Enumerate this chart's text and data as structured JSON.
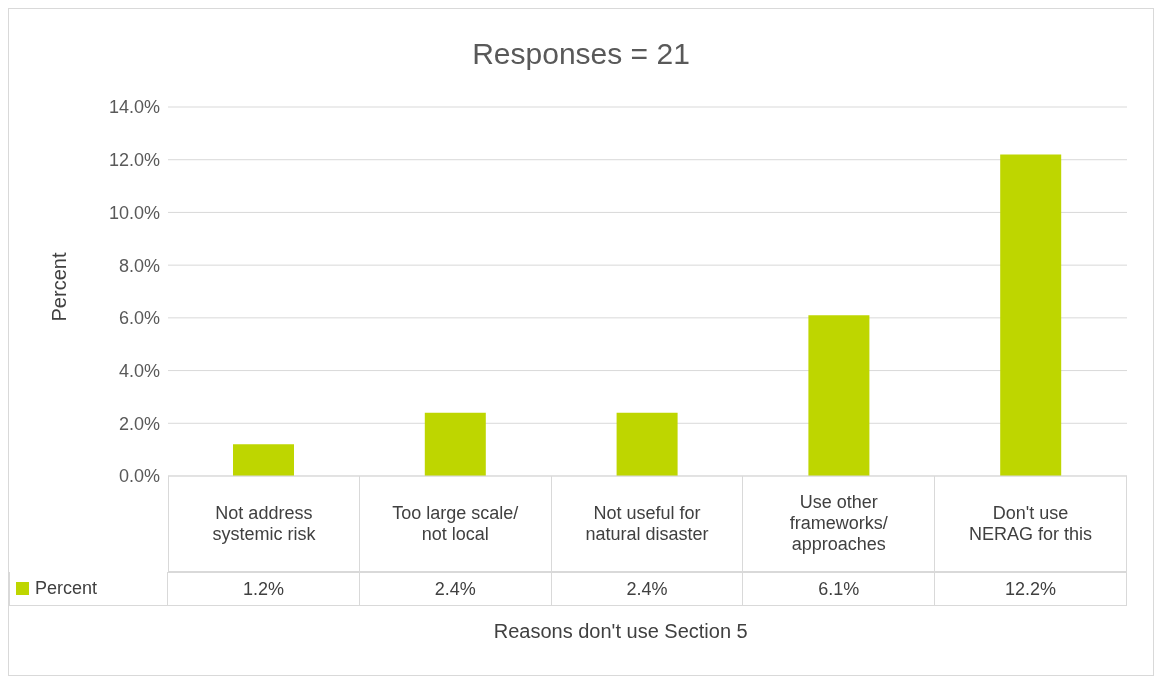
{
  "chart_data": {
    "type": "bar",
    "title": "Responses = 21",
    "xlabel": "Reasons don't use Section 5",
    "ylabel": "Percent",
    "categories": [
      "Not address systemic risk",
      "Too large scale/ not local",
      "Not useful for natural disaster",
      "Use other frameworks/ approaches",
      "Don't use NERAG for this"
    ],
    "series": [
      {
        "name": "Percent",
        "color": "#bed600",
        "values": [
          1.2,
          2.4,
          2.4,
          6.1,
          12.2
        ],
        "value_labels": [
          "1.2%",
          "2.4%",
          "2.4%",
          "6.1%",
          "12.2%"
        ]
      }
    ],
    "ylim": [
      0,
      14
    ],
    "yticks": [
      {
        "value": 0,
        "label": "0.0%"
      },
      {
        "value": 2,
        "label": "2.0%"
      },
      {
        "value": 4,
        "label": "4.0%"
      },
      {
        "value": 6,
        "label": "6.0%"
      },
      {
        "value": 8,
        "label": "8.0%"
      },
      {
        "value": 10,
        "label": "10.0%"
      },
      {
        "value": 12,
        "label": "12.0%"
      },
      {
        "value": 14,
        "label": "14.0%"
      }
    ],
    "grid": "y",
    "legend": "bottom"
  }
}
